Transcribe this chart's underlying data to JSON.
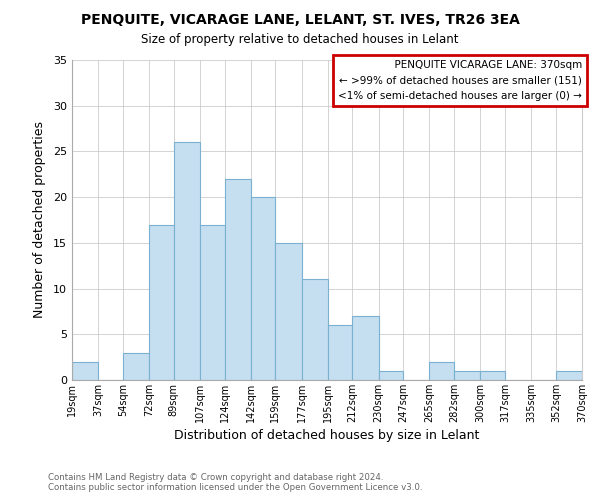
{
  "title": "PENQUITE, VICARAGE LANE, LELANT, ST. IVES, TR26 3EA",
  "subtitle": "Size of property relative to detached houses in Lelant",
  "xlabel": "Distribution of detached houses by size in Lelant",
  "ylabel": "Number of detached properties",
  "bar_color": "#c5dff0",
  "bar_edgecolor": "#7ab0d0",
  "bins": [
    19,
    37,
    54,
    72,
    89,
    107,
    124,
    142,
    159,
    177,
    195,
    212,
    230,
    247,
    265,
    282,
    300,
    317,
    335,
    352,
    370
  ],
  "counts": [
    2,
    0,
    3,
    17,
    26,
    17,
    22,
    20,
    15,
    11,
    6,
    7,
    1,
    0,
    2,
    1,
    1,
    0,
    0,
    1
  ],
  "tick_labels": [
    "19sqm",
    "37sqm",
    "54sqm",
    "72sqm",
    "89sqm",
    "107sqm",
    "124sqm",
    "142sqm",
    "159sqm",
    "177sqm",
    "195sqm",
    "212sqm",
    "230sqm",
    "247sqm",
    "265sqm",
    "282sqm",
    "300sqm",
    "317sqm",
    "335sqm",
    "352sqm",
    "370sqm"
  ],
  "ylim": [
    0,
    35
  ],
  "yticks": [
    0,
    5,
    10,
    15,
    20,
    25,
    30,
    35
  ],
  "legend_title": "PENQUITE VICARAGE LANE: 370sqm",
  "legend_line1": "← >99% of detached houses are smaller (151)",
  "legend_line2": "<1% of semi-detached houses are larger (0) →",
  "legend_box_color": "#ffffff",
  "legend_box_edgecolor": "#cc0000",
  "footer1": "Contains HM Land Registry data © Crown copyright and database right 2024.",
  "footer2": "Contains public sector information licensed under the Open Government Licence v3.0.",
  "background_color": "#ffffff",
  "grid_color": "#cccccc"
}
